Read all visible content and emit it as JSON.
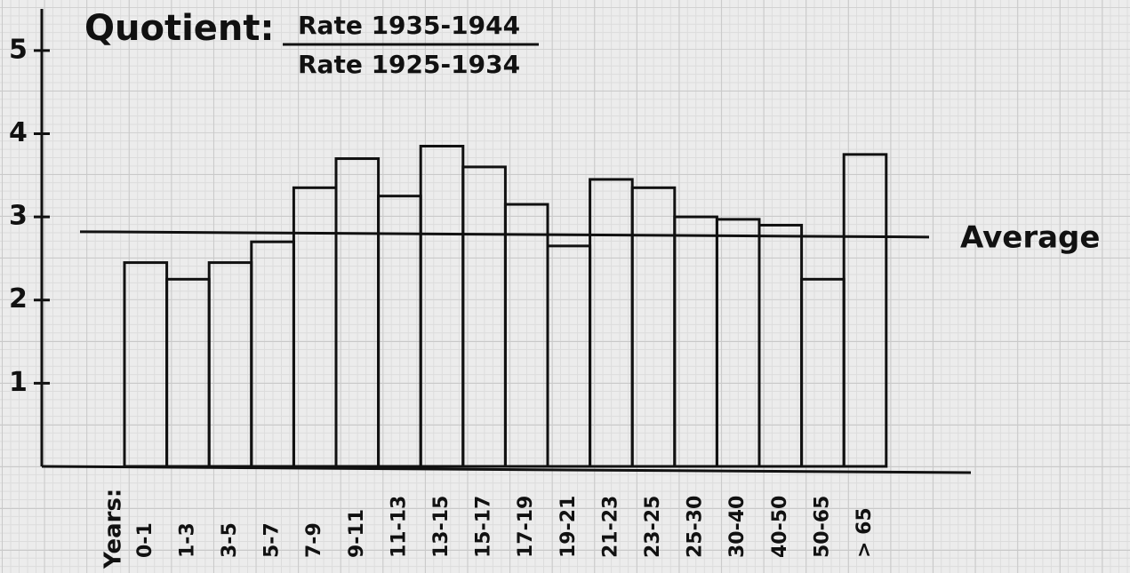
{
  "chart_data": {
    "type": "bar",
    "title": "Quotient:",
    "numerator": "Rate 1935-1944",
    "denominator": "Rate 1925-1934",
    "x_label": "Years:",
    "categories": [
      "0-1",
      "1-3",
      "3-5",
      "5-7",
      "7-9",
      "9-11",
      "11-13",
      "13-15",
      "15-17",
      "17-19",
      "19-21",
      "21-23",
      "23-25",
      "25-30",
      "30-40",
      "40-50",
      "50-65",
      "> 65"
    ],
    "values": [
      2.45,
      2.25,
      2.45,
      2.7,
      3.35,
      3.7,
      3.25,
      3.85,
      3.6,
      3.15,
      2.65,
      3.45,
      3.35,
      3.0,
      2.97,
      2.9,
      2.25,
      3.75
    ],
    "color": "#111111",
    "ylim": [
      0,
      5.5
    ],
    "yticks": [
      1,
      2,
      3,
      4,
      5
    ],
    "average": {
      "value": 2.8,
      "label": "Average"
    }
  }
}
